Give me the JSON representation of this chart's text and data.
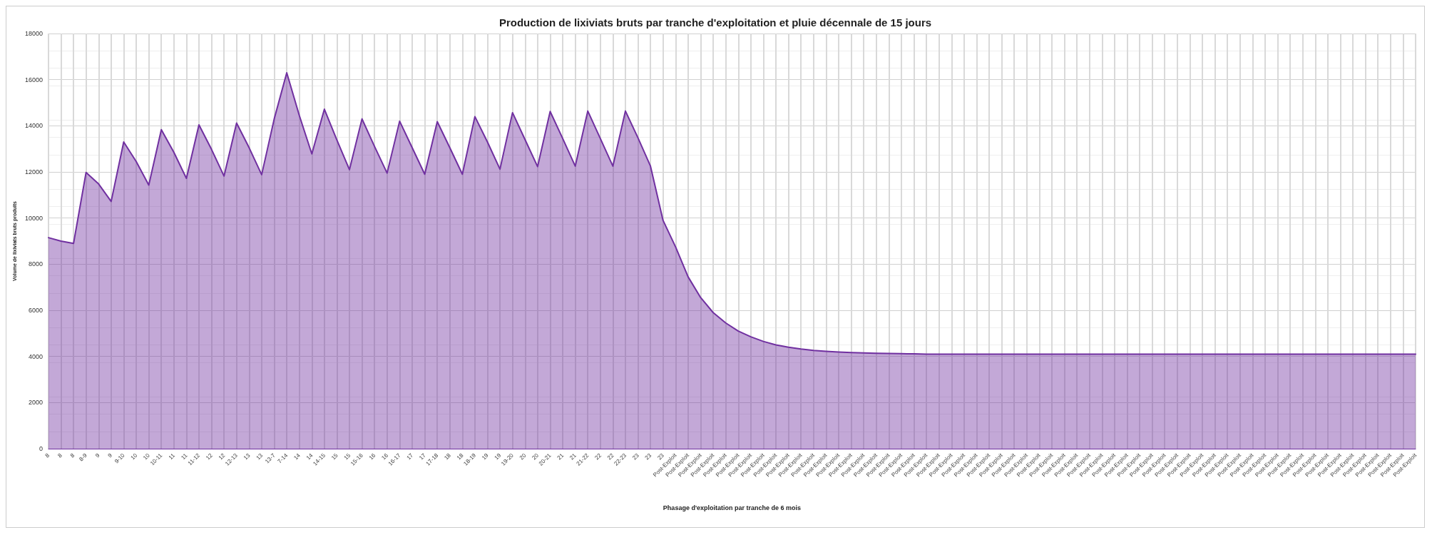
{
  "chart_data": {
    "type": "area",
    "title": "Production de lixiviats bruts par tranche d'exploitation et pluie décennale de 15 jours",
    "xlabel": "Phasage d'exploitation par tranche de 6 mois",
    "ylabel": "Volume de lixiviats bruts produits",
    "categories": [
      "8",
      "8",
      "8",
      "8-9",
      "9",
      "9",
      "9-10",
      "10",
      "10",
      "10-11",
      "11",
      "11",
      "11-12",
      "12",
      "12",
      "12-13",
      "13",
      "13",
      "13-7",
      "7-14",
      "14",
      "14",
      "14-15",
      "15",
      "15",
      "15-16",
      "16",
      "16",
      "16-17",
      "17",
      "17",
      "17-18",
      "18",
      "18",
      "18-19",
      "19",
      "19",
      "19-20",
      "20",
      "20",
      "20-21",
      "21",
      "21",
      "21-22",
      "22",
      "22",
      "22-23",
      "23",
      "23",
      "23",
      "Post-Exploit",
      "Post-Exploit",
      "Post-Exploit",
      "Post-Exploit",
      "Post-Exploit",
      "Post-Exploit",
      "Post-Exploit",
      "Post-Exploit",
      "Post-Exploit",
      "Post-Exploit",
      "Post-Exploit",
      "Post-Exploit",
      "Post-Exploit",
      "Post-Exploit",
      "Post-Exploit",
      "Post-Exploit",
      "Post-Exploit",
      "Post-Exploit",
      "Post-Exploit",
      "Post-Exploit",
      "Post-Exploit",
      "Post-Exploit",
      "Post-Exploit",
      "Post-Exploit",
      "Post-Exploit",
      "Post-Exploit",
      "Post-Exploit",
      "Post-Exploit",
      "Post-Exploit",
      "Post-Exploit",
      "Post-Exploit",
      "Post-Exploit",
      "Post-Exploit",
      "Post-Exploit",
      "Post-Exploit",
      "Post-Exploit",
      "Post-Exploit",
      "Post-Exploit",
      "Post-Exploit",
      "Post-Exploit",
      "Post-Exploit",
      "Post-Exploit",
      "Post-Exploit",
      "Post-Exploit",
      "Post-Exploit",
      "Post-Exploit",
      "Post-Exploit",
      "Post-Exploit",
      "Post-Exploit",
      "Post-Exploit",
      "Post-Exploit",
      "Post-Exploit",
      "Post-Exploit",
      "Post-Exploit",
      "Post-Exploit",
      "Post-Exploit",
      "Post-Exploit",
      "Post-Exploit",
      "Post-Exploit",
      "Post-Exploit"
    ],
    "series": [
      {
        "color": "#7030a0",
        "values": [
          9150,
          9000,
          8900,
          11980,
          11480,
          10720,
          13300,
          12450,
          11430,
          13830,
          12850,
          11720,
          14040,
          12980,
          11820,
          14120,
          13050,
          11880,
          14300,
          16300,
          14450,
          12780,
          14720,
          13380,
          12100,
          14300,
          13100,
          11950,
          14200,
          13050,
          11900,
          14180,
          13050,
          11900,
          14400,
          13300,
          12120,
          14570,
          13400,
          12230,
          14620,
          13450,
          12250,
          14640,
          13450,
          12250,
          14640,
          13480,
          12250,
          9900,
          8750,
          7450,
          6550,
          5900,
          5450,
          5100,
          4850,
          4650,
          4500,
          4400,
          4320,
          4260,
          4220,
          4190,
          4170,
          4150,
          4140,
          4130,
          4120,
          4110,
          4100,
          4100,
          4100,
          4100,
          4100,
          4100,
          4100,
          4100,
          4100,
          4100,
          4100,
          4100,
          4100,
          4100,
          4100,
          4100,
          4100,
          4100,
          4100,
          4100,
          4100,
          4100,
          4100,
          4100,
          4100,
          4100,
          4100,
          4100,
          4100,
          4100,
          4100,
          4100,
          4100,
          4100,
          4100,
          4100,
          4100,
          4100,
          4100,
          4100
        ]
      }
    ],
    "ylim": [
      0,
      18000
    ],
    "yticks": [
      0,
      2000,
      4000,
      6000,
      8000,
      10000,
      12000,
      14000,
      16000,
      18000
    ],
    "grid": true,
    "marker": "none",
    "line_style": "solid"
  }
}
